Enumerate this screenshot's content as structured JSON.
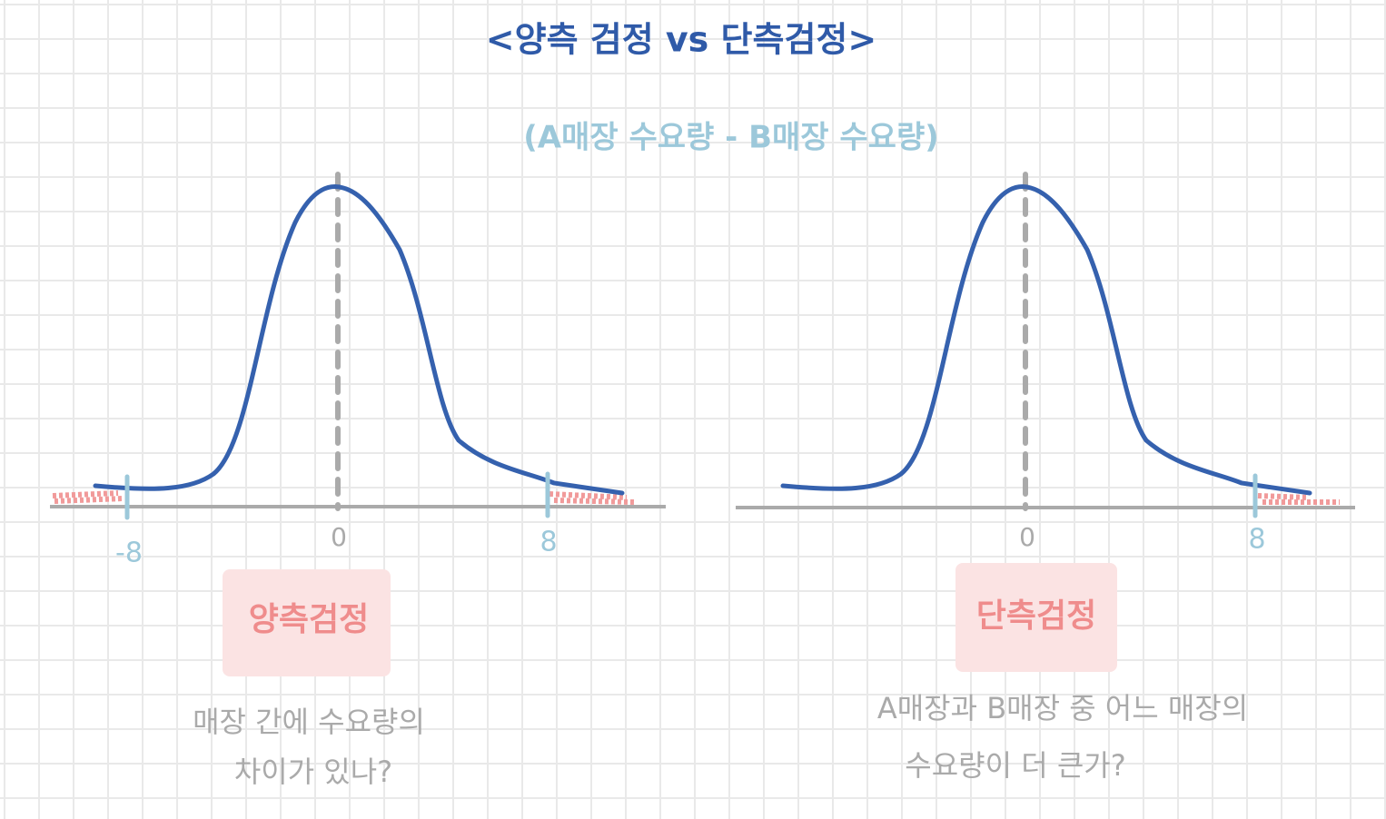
{
  "header": {
    "title": "<양측 검정 vs 단측검정>",
    "subtitle": "(A매장 수요량 - B매장 수요량)"
  },
  "panels": [
    {
      "ticks": [
        "-8",
        "0",
        "8"
      ],
      "label": "양측검정",
      "caption": [
        "매장 간에 수요량의",
        "차이가 있나?"
      ]
    },
    {
      "ticks": [
        "0",
        "8"
      ],
      "label": "단측검정",
      "caption": [
        "A매장과 B매장 중 어느 매장의",
        "수요량이 더 큰가?"
      ]
    }
  ]
}
